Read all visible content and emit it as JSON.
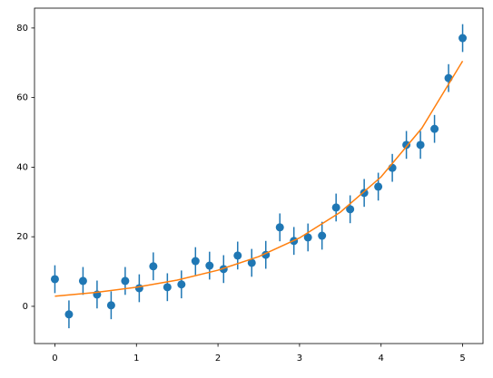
{
  "chart_data": {
    "type": "scatter",
    "xlim": [
      -0.25,
      5.25
    ],
    "ylim": [
      -10.7,
      85.7
    ],
    "xticks": [
      0,
      1,
      2,
      3,
      4,
      5
    ],
    "yticks": [
      0,
      20,
      40,
      60,
      80
    ],
    "series": [
      {
        "type": "errorbar",
        "color": "#1f77b4",
        "x": [
          0,
          0.1724,
          0.3448,
          0.5172,
          0.6897,
          0.8621,
          1.0345,
          1.2069,
          1.3793,
          1.5517,
          1.7241,
          1.8966,
          2.069,
          2.2414,
          2.4138,
          2.5862,
          2.7586,
          2.931,
          3.1034,
          3.2759,
          3.4483,
          3.6207,
          3.7931,
          3.9655,
          4.1379,
          4.3103,
          4.4828,
          4.6552,
          4.8276,
          5
        ],
        "values": [
          7.8,
          -2.3,
          7.3,
          3.4,
          0.3,
          7.3,
          5.2,
          11.5,
          5.5,
          6.3,
          13.0,
          11.7,
          10.7,
          14.6,
          12.5,
          14.8,
          22.7,
          18.8,
          19.8,
          20.3,
          28.4,
          27.9,
          32.6,
          34.4,
          39.8,
          46.4,
          46.4,
          51.0,
          65.6,
          77.1
        ],
        "errors": [
          4,
          4,
          4,
          4,
          4,
          4,
          4,
          4,
          4,
          4,
          4,
          4,
          4,
          4,
          4,
          4,
          4,
          4,
          4,
          4,
          4,
          4,
          4,
          4,
          4,
          4,
          4,
          4,
          4,
          4
        ]
      },
      {
        "type": "line",
        "color": "#ff7f0e",
        "x": [
          0,
          0.5,
          1,
          1.5,
          2,
          2.5,
          3,
          3.5,
          4,
          4.5,
          5
        ],
        "values": [
          2.9,
          3.99,
          5.49,
          7.55,
          10.39,
          14.29,
          19.66,
          27.05,
          37.2,
          51.2,
          70.5
        ]
      }
    ]
  }
}
